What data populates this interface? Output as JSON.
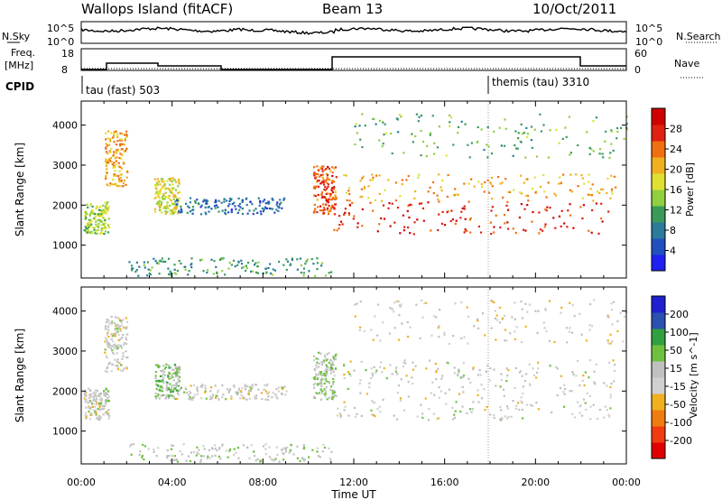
{
  "header": {
    "station": "Wallops Island (fitACF)",
    "beam": "Beam 13",
    "date": "10/Oct/2011"
  },
  "top_panels": {
    "nsky": {
      "label": "N.Sky",
      "ticks": [
        "10^5",
        "10^0"
      ]
    },
    "nsearch": {
      "label": "N.Search",
      "ticks": [
        "10^5",
        "10^0"
      ]
    },
    "freq": {
      "label_line1": "Freq.",
      "label_line2": "[MHz]",
      "ticks": [
        "18",
        "8"
      ]
    },
    "nave": {
      "label": "Nave",
      "ticks": [
        "60",
        "0"
      ]
    },
    "cpid": {
      "label": "CPID",
      "modes": [
        {
          "name": "tau (fast) 503",
          "start_hour": 0
        },
        {
          "name": "themis (tau) 3310",
          "start_hour": 18.1
        }
      ]
    }
  },
  "colors": {
    "power_scale": [
      "#2020f0",
      "#2050c0",
      "#2a7c9a",
      "#3a9a5a",
      "#8fcf40",
      "#e0e030",
      "#f0b020",
      "#f07010",
      "#e02010",
      "#d00000"
    ],
    "velocity_scale": [
      "#e00000",
      "#f03c10",
      "#f07c10",
      "#f0b020",
      "#d0d0d0",
      "#c0c0c0",
      "#70c040",
      "#30a040",
      "#2a50b0",
      "#2020d0"
    ]
  },
  "chart_data": [
    {
      "type": "heatmap",
      "panel": "power",
      "xlabel": "",
      "ylabel": "Slant Range [km]",
      "xlim": [
        0,
        24
      ],
      "ylim": [
        180,
        4600
      ],
      "y_ticks": [
        1000,
        2000,
        3000,
        4000
      ],
      "colorbar": {
        "label": "Power [dB]",
        "ticks": [
          "28",
          "24",
          "20",
          "16",
          "12",
          "8",
          "4"
        ],
        "range": [
          0,
          30
        ]
      },
      "echo_regions": [
        {
          "t0": 0.1,
          "t1": 1.2,
          "r0": 1300,
          "r1": 2100,
          "value": 14
        },
        {
          "t0": 1.0,
          "t1": 2.0,
          "r0": 2500,
          "r1": 3900,
          "value": 20
        },
        {
          "t0": 3.2,
          "t1": 4.3,
          "r0": 1800,
          "r1": 2700,
          "value": 16
        },
        {
          "t0": 4.0,
          "t1": 9.0,
          "r0": 1800,
          "r1": 2200,
          "value": 6
        },
        {
          "t0": 2.0,
          "t1": 11.0,
          "r0": 250,
          "r1": 700,
          "value": 10
        },
        {
          "t0": 10.2,
          "t1": 11.2,
          "r0": 1800,
          "r1": 3000,
          "value": 24
        },
        {
          "t0": 11.0,
          "t1": 23.3,
          "r0": 1300,
          "r1": 2100,
          "value": 26
        },
        {
          "t0": 11.5,
          "t1": 23.5,
          "r0": 2100,
          "r1": 2800,
          "value": 20
        },
        {
          "t0": 12.0,
          "t1": 24.0,
          "r0": 3200,
          "r1": 4300,
          "value": 12
        }
      ]
    },
    {
      "type": "heatmap",
      "panel": "velocity",
      "xlabel": "Time UT",
      "ylabel": "Slant Range [km]",
      "xlim": [
        0,
        24
      ],
      "ylim": [
        180,
        4600
      ],
      "x_ticks": [
        "00:00",
        "04:00",
        "08:00",
        "12:00",
        "16:00",
        "20:00",
        "00:00"
      ],
      "y_ticks": [
        1000,
        2000,
        3000,
        4000
      ],
      "colorbar": {
        "label": "Velocity [m s^-1]",
        "ticks": [
          "200",
          "100",
          "50",
          "15",
          "-15",
          "-50",
          "-100",
          "-200"
        ],
        "range": [
          -250,
          250
        ]
      },
      "echo_regions": [
        {
          "t0": 0.1,
          "t1": 1.2,
          "r0": 1300,
          "r1": 2100,
          "value": 0
        },
        {
          "t0": 1.0,
          "t1": 2.0,
          "r0": 2500,
          "r1": 3900,
          "value": 0
        },
        {
          "t0": 3.2,
          "t1": 4.3,
          "r0": 1800,
          "r1": 2700,
          "value": 60
        },
        {
          "t0": 4.0,
          "t1": 9.0,
          "r0": 1800,
          "r1": 2200,
          "value": 0
        },
        {
          "t0": 2.0,
          "t1": 11.0,
          "r0": 250,
          "r1": 700,
          "value": 30
        },
        {
          "t0": 10.2,
          "t1": 11.2,
          "r0": 1800,
          "r1": 3000,
          "value": 40
        },
        {
          "t0": 11.0,
          "t1": 23.3,
          "r0": 1300,
          "r1": 2100,
          "value": 0
        },
        {
          "t0": 11.5,
          "t1": 23.5,
          "r0": 2100,
          "r1": 2800,
          "value": 0
        },
        {
          "t0": 12.0,
          "t1": 24.0,
          "r0": 3200,
          "r1": 4300,
          "value": -20
        }
      ]
    }
  ]
}
